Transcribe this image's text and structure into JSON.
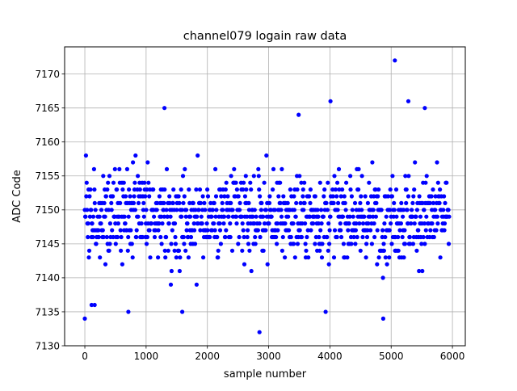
{
  "chart_data": {
    "type": "scatter",
    "title": "channel079 logain raw data",
    "xlabel": "sample number",
    "ylabel": "ADC Code",
    "xlim": [
      -330,
      6210
    ],
    "ylim": [
      7130,
      7174
    ],
    "x_ticks": [
      0,
      1000,
      2000,
      3000,
      4000,
      5000,
      6000
    ],
    "y_ticks": [
      7130,
      7135,
      7140,
      7145,
      7150,
      7155,
      7160,
      7165,
      7170
    ],
    "grid": true,
    "legend": "none",
    "marker_color": "#0000ff",
    "n_samples": 5952,
    "typical_range": [
      7141,
      7157
    ],
    "center": 7149,
    "outliers": [
      {
        "x": 0,
        "y": 7134
      },
      {
        "x": 110,
        "y": 7136
      },
      {
        "x": 160,
        "y": 7136
      },
      {
        "x": 710,
        "y": 7135
      },
      {
        "x": 1300,
        "y": 7165
      },
      {
        "x": 1590,
        "y": 7135
      },
      {
        "x": 2850,
        "y": 7132
      },
      {
        "x": 3490,
        "y": 7164
      },
      {
        "x": 3930,
        "y": 7135
      },
      {
        "x": 4010,
        "y": 7166
      },
      {
        "x": 4870,
        "y": 7134
      },
      {
        "x": 5060,
        "y": 7172
      },
      {
        "x": 5280,
        "y": 7166
      },
      {
        "x": 5550,
        "y": 7165
      }
    ]
  }
}
